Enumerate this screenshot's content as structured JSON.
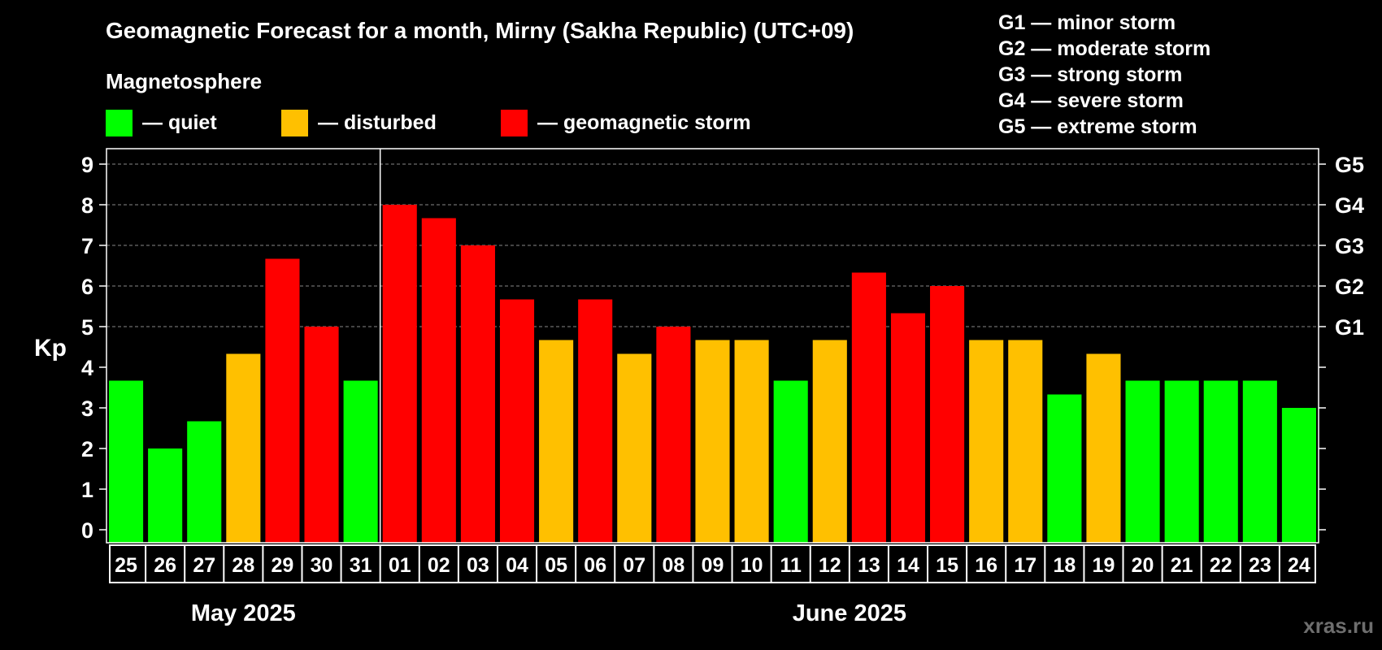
{
  "colors": {
    "quiet": "#00ff00",
    "disturbed": "#ffc000",
    "storm": "#ff0000",
    "background": "#000000",
    "grid": "#888888"
  },
  "header": {
    "title": "Geomagnetic Forecast for a month, Mirny (Sakha Republic) (UTC+09)",
    "subtitle": "Magnetosphere"
  },
  "legend": [
    {
      "label": "— quiet",
      "color_key": "quiet"
    },
    {
      "label": "— disturbed",
      "color_key": "disturbed"
    },
    {
      "label": "— geomagnetic storm",
      "color_key": "storm"
    }
  ],
  "storm_levels": [
    "G1 — minor storm",
    "G2 — moderate storm",
    "G3 — strong storm",
    "G4 — severe storm",
    "G5 — extreme storm"
  ],
  "watermark": "xras.ru",
  "chart_data": {
    "type": "bar",
    "ylabel": "Kp",
    "ylim": [
      0,
      9
    ],
    "yticks": [
      0,
      1,
      2,
      3,
      4,
      5,
      6,
      7,
      8,
      9
    ],
    "right_ticks": [
      {
        "value": 5,
        "label": "G1"
      },
      {
        "value": 6,
        "label": "G2"
      },
      {
        "value": 7,
        "label": "G3"
      },
      {
        "value": 8,
        "label": "G4"
      },
      {
        "value": 9,
        "label": "G5"
      }
    ],
    "grid": true,
    "month_labels": [
      "May 2025",
      "June 2025"
    ],
    "categories": [
      "25",
      "26",
      "27",
      "28",
      "29",
      "30",
      "31",
      "01",
      "02",
      "03",
      "04",
      "05",
      "06",
      "07",
      "08",
      "09",
      "10",
      "11",
      "12",
      "13",
      "14",
      "15",
      "16",
      "17",
      "18",
      "19",
      "20",
      "21",
      "22",
      "23",
      "24"
    ],
    "values": [
      3.67,
      2.0,
      2.67,
      4.33,
      6.67,
      5.0,
      3.67,
      8.0,
      7.67,
      7.0,
      5.67,
      4.67,
      5.67,
      4.33,
      5.0,
      4.67,
      4.67,
      3.67,
      4.67,
      6.33,
      5.33,
      6.0,
      4.67,
      4.67,
      3.33,
      4.33,
      3.67,
      3.67,
      3.67,
      3.67,
      3.0
    ],
    "levels": [
      "quiet",
      "quiet",
      "quiet",
      "disturbed",
      "storm",
      "storm",
      "quiet",
      "storm",
      "storm",
      "storm",
      "storm",
      "disturbed",
      "storm",
      "disturbed",
      "storm",
      "disturbed",
      "disturbed",
      "quiet",
      "disturbed",
      "storm",
      "storm",
      "storm",
      "disturbed",
      "disturbed",
      "quiet",
      "disturbed",
      "quiet",
      "quiet",
      "quiet",
      "quiet",
      "quiet"
    ]
  }
}
